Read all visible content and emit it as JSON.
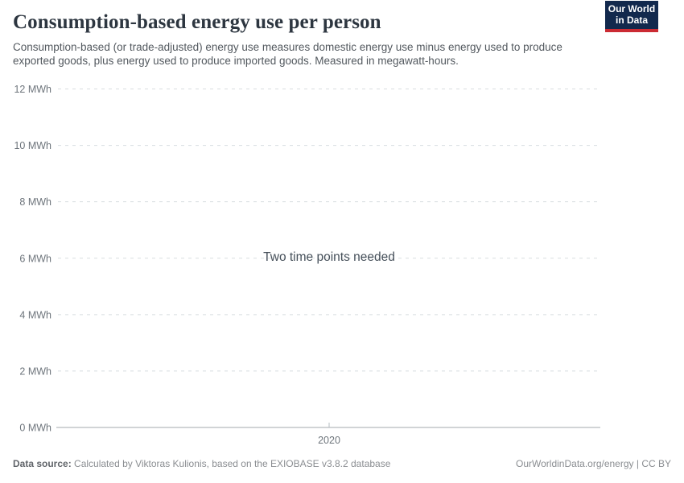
{
  "header": {
    "title": "Consumption-based energy use per person",
    "subtitle": "Consumption-based (or trade-adjusted) energy use measures domestic energy use minus energy used to produce exported goods, plus energy used to produce imported goods. Measured in megawatt-hours.",
    "logo": {
      "line1": "Our World",
      "line2": "in Data"
    }
  },
  "chart_data": {
    "type": "line",
    "title": "Consumption-based energy use per person",
    "y_unit": "MWh",
    "ylim": [
      0,
      12
    ],
    "y_ticks": [
      "0 MWh",
      "2 MWh",
      "4 MWh",
      "6 MWh",
      "8 MWh",
      "10 MWh",
      "12 MWh"
    ],
    "y_tick_values": [
      0,
      2,
      4,
      6,
      8,
      10,
      12
    ],
    "x_ticks": [
      "2020"
    ],
    "grid": true,
    "series": [],
    "empty_message": "Two time points needed",
    "legend_position": "none"
  },
  "colors": {
    "background": "#ffffff",
    "title": "#2d3640",
    "subtitle": "#53595f",
    "gridline": "#d8dde0",
    "axis": "#a3a9ad",
    "tick_mark": "#b5bcc1",
    "tick_text": "#6e757c",
    "logo_bg": "#12294d",
    "logo_accent": "#cb2b33"
  },
  "footer": {
    "source_label": "Data source:",
    "source_text": " Calculated by Viktoras Kulionis, based on the EXIOBASE v3.8.2 database",
    "credit": "OurWorldinData.org/energy | CC BY"
  }
}
